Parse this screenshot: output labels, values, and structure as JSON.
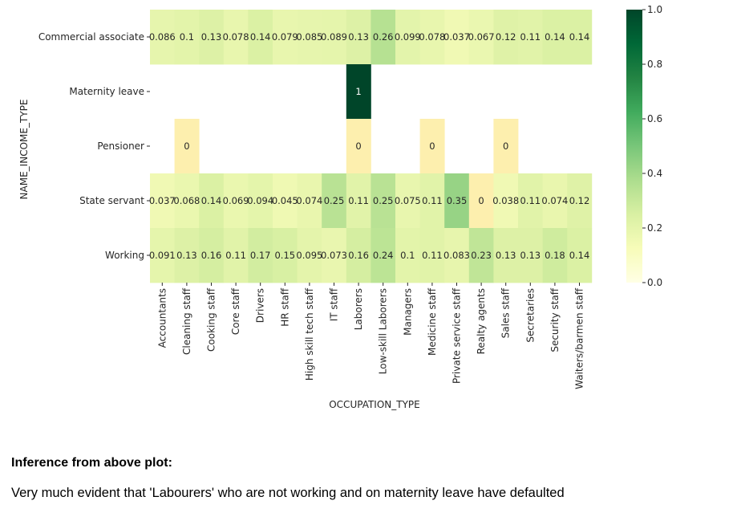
{
  "chart_data": {
    "type": "heatmap",
    "xlabel": "OCCUPATION_TYPE",
    "ylabel": "NAME_INCOME_TYPE",
    "x": [
      "Accountants",
      "Cleaning staff",
      "Cooking staff",
      "Core staff",
      "Drivers",
      "HR staff",
      "High skill tech staff",
      "IT staff",
      "Laborers",
      "Low-skill Laborers",
      "Managers",
      "Medicine staff",
      "Private service staff",
      "Realty agents",
      "Sales staff",
      "Secretaries",
      "Security staff",
      "Waiters/barmen staff"
    ],
    "y": [
      "Commercial associate",
      "Maternity leave",
      "Pensioner",
      "State servant",
      "Working"
    ],
    "values": [
      [
        0.086,
        0.1,
        0.13,
        0.078,
        0.14,
        0.079,
        0.085,
        0.089,
        0.13,
        0.26,
        0.099,
        0.078,
        0.037,
        0.067,
        0.12,
        0.11,
        0.14,
        0.14
      ],
      [
        null,
        null,
        null,
        null,
        null,
        null,
        null,
        null,
        1,
        null,
        null,
        null,
        null,
        null,
        null,
        null,
        null,
        null
      ],
      [
        null,
        0,
        null,
        null,
        null,
        null,
        null,
        null,
        0,
        null,
        null,
        0,
        null,
        null,
        0,
        null,
        null,
        null
      ],
      [
        0.037,
        0.068,
        0.14,
        0.069,
        0.094,
        0.045,
        0.074,
        0.25,
        0.11,
        0.25,
        0.075,
        0.11,
        0.35,
        0,
        0.038,
        0.11,
        0.074,
        0.12
      ],
      [
        0.091,
        0.13,
        0.16,
        0.11,
        0.17,
        0.15,
        0.095,
        0.073,
        0.16,
        0.24,
        0.1,
        0.11,
        0.083,
        0.23,
        0.13,
        0.13,
        0.18,
        0.14
      ]
    ],
    "colorscale": "YlGn",
    "vmin": 0,
    "vmax": 1,
    "colorbar_ticks": [
      "0.0",
      "0.2",
      "0.4",
      "0.6",
      "0.8",
      "1.0"
    ]
  },
  "inference": {
    "heading": "Inference from above plot:",
    "text": "Very much evident that 'Labourers' who are not working and on maternity leave have defaulted"
  }
}
